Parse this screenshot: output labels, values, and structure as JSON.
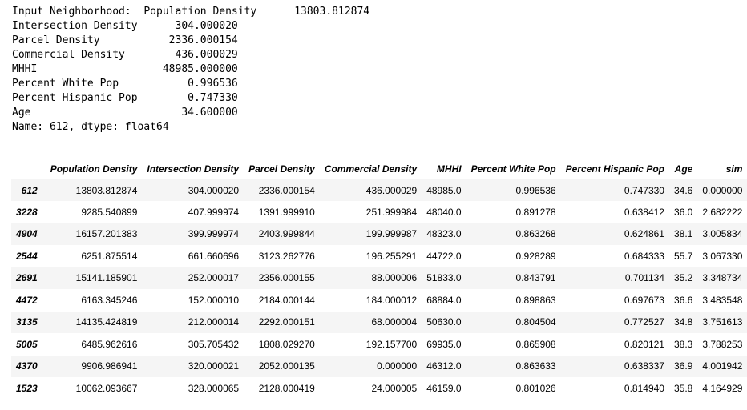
{
  "stdout_lines": [
    "Input Neighborhood:  Population Density      13803.812874",
    "Intersection Density      304.000020",
    "Parcel Density           2336.000154",
    "Commercial Density        436.000029",
    "MHHI                    48985.000000",
    "Percent White Pop           0.996536",
    "Percent Hispanic Pop        0.747330",
    "Age                        34.600000",
    "Name: 612, dtype: float64"
  ],
  "table": {
    "columns": [
      "Population Density",
      "Intersection Density",
      "Parcel Density",
      "Commercial Density",
      "MHHI",
      "Percent White Pop",
      "Percent Hispanic Pop",
      "Age",
      "sim"
    ],
    "rows": [
      {
        "index": "612",
        "cells": [
          "13803.812874",
          "304.000020",
          "2336.000154",
          "436.000029",
          "48985.0",
          "0.996536",
          "0.747330",
          "34.6",
          "0.000000"
        ]
      },
      {
        "index": "3228",
        "cells": [
          "9285.540899",
          "407.999974",
          "1391.999910",
          "251.999984",
          "48040.0",
          "0.891278",
          "0.638412",
          "36.0",
          "2.682222"
        ]
      },
      {
        "index": "4904",
        "cells": [
          "16157.201383",
          "399.999974",
          "2403.999844",
          "199.999987",
          "48323.0",
          "0.863268",
          "0.624861",
          "38.1",
          "3.005834"
        ]
      },
      {
        "index": "2544",
        "cells": [
          "6251.875514",
          "661.660696",
          "3123.262776",
          "196.255291",
          "44722.0",
          "0.928289",
          "0.684333",
          "55.7",
          "3.067330"
        ]
      },
      {
        "index": "2691",
        "cells": [
          "15141.185901",
          "252.000017",
          "2356.000155",
          "88.000006",
          "51833.0",
          "0.843791",
          "0.701134",
          "35.2",
          "3.348734"
        ]
      },
      {
        "index": "4472",
        "cells": [
          "6163.345246",
          "152.000010",
          "2184.000144",
          "184.000012",
          "68884.0",
          "0.898863",
          "0.697673",
          "36.6",
          "3.483548"
        ]
      },
      {
        "index": "3135",
        "cells": [
          "14135.424819",
          "212.000014",
          "2292.000151",
          "68.000004",
          "50630.0",
          "0.804504",
          "0.772527",
          "34.8",
          "3.751613"
        ]
      },
      {
        "index": "5005",
        "cells": [
          "6485.962616",
          "305.705432",
          "1808.029270",
          "192.157700",
          "69935.0",
          "0.865908",
          "0.820121",
          "38.3",
          "3.788253"
        ]
      },
      {
        "index": "4370",
        "cells": [
          "9906.986941",
          "320.000021",
          "2052.000135",
          "0.000000",
          "46312.0",
          "0.863633",
          "0.638337",
          "36.9",
          "4.001942"
        ]
      },
      {
        "index": "1523",
        "cells": [
          "10062.093667",
          "328.000065",
          "2128.000419",
          "24.000005",
          "46159.0",
          "0.801026",
          "0.814940",
          "35.8",
          "4.164929"
        ]
      }
    ]
  }
}
